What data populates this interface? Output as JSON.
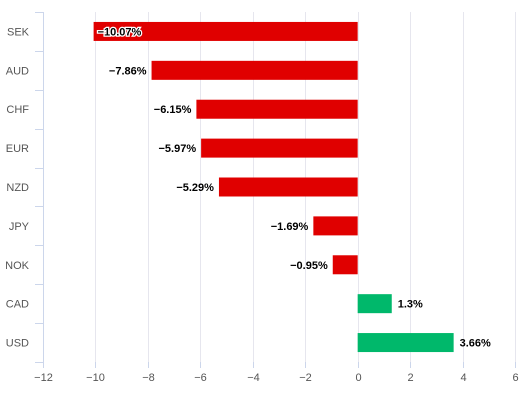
{
  "chart_data": {
    "type": "bar",
    "orientation": "horizontal",
    "categories": [
      "SEK",
      "AUD",
      "CHF",
      "EUR",
      "NZD",
      "JPY",
      "NOK",
      "CAD",
      "USD"
    ],
    "values": [
      -10.07,
      -7.86,
      -6.15,
      -5.97,
      -5.29,
      -1.69,
      -0.95,
      1.3,
      3.66
    ],
    "data_labels": [
      "−10.07%",
      "−7.86%",
      "−6.15%",
      "−5.97%",
      "−5.29%",
      "−1.69%",
      "−0.95%",
      "1.3%",
      "3.66%"
    ],
    "x_ticks": [
      -12,
      -10,
      -8,
      -6,
      -4,
      -2,
      0,
      2,
      4,
      6
    ],
    "x_tick_labels": [
      "−12",
      "−10",
      "−8",
      "−6",
      "−4",
      "−2",
      "0",
      "2",
      "4",
      "6"
    ],
    "xlim": [
      -12,
      6
    ],
    "grid": true,
    "colors": {
      "negative": "#e00000",
      "positive": "#00b86b"
    },
    "title": "",
    "xlabel": "",
    "ylabel": ""
  }
}
